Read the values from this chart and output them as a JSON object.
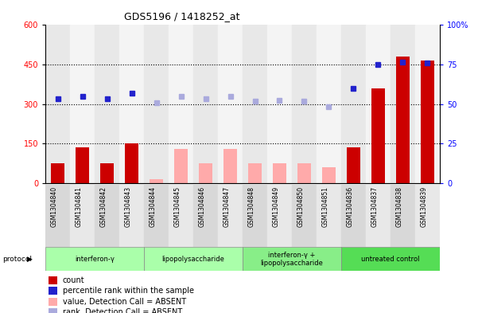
{
  "title": "GDS5196 / 1418252_at",
  "samples": [
    "GSM1304840",
    "GSM1304841",
    "GSM1304842",
    "GSM1304843",
    "GSM1304844",
    "GSM1304845",
    "GSM1304846",
    "GSM1304847",
    "GSM1304848",
    "GSM1304849",
    "GSM1304850",
    "GSM1304851",
    "GSM1304836",
    "GSM1304837",
    "GSM1304838",
    "GSM1304839"
  ],
  "count_values": [
    75,
    135,
    75,
    150,
    null,
    null,
    null,
    null,
    null,
    null,
    null,
    null,
    135,
    360,
    480,
    465
  ],
  "count_absent": [
    null,
    null,
    null,
    null,
    15,
    130,
    75,
    130,
    75,
    75,
    75,
    60,
    null,
    null,
    null,
    null
  ],
  "rank_values": [
    320,
    330,
    320,
    340,
    null,
    null,
    null,
    null,
    null,
    null,
    null,
    null,
    360,
    450,
    460,
    455
  ],
  "rank_absent": [
    null,
    null,
    null,
    null,
    305,
    330,
    320,
    330,
    310,
    315,
    310,
    290,
    null,
    null,
    null,
    null
  ],
  "protocols": [
    {
      "label": "interferon-γ",
      "start": 0,
      "end": 3,
      "color": "#aaffaa"
    },
    {
      "label": "lipopolysaccharide",
      "start": 4,
      "end": 7,
      "color": "#aaffaa"
    },
    {
      "label": "interferon-γ +\nlipopolysaccharide",
      "start": 8,
      "end": 11,
      "color": "#88ee88"
    },
    {
      "label": "untreated control",
      "start": 12,
      "end": 15,
      "color": "#55dd55"
    }
  ],
  "ylim_left": [
    0,
    600
  ],
  "ylim_right": [
    0,
    100
  ],
  "yticks_left": [
    0,
    150,
    300,
    450,
    600
  ],
  "yticks_right": [
    0,
    25,
    50,
    75,
    100
  ],
  "ytick_labels_right": [
    "0",
    "25",
    "50",
    "75",
    "100%"
  ],
  "bar_color_count": "#cc0000",
  "bar_color_absent": "#ffaaaa",
  "dot_color_rank": "#2222cc",
  "dot_color_rank_absent": "#aaaadd",
  "grid_color": "black",
  "grid_style": "dotted",
  "legend_items": [
    {
      "label": "count",
      "color": "#cc0000"
    },
    {
      "label": "percentile rank within the sample",
      "color": "#2222cc"
    },
    {
      "label": "value, Detection Call = ABSENT",
      "color": "#ffaaaa"
    },
    {
      "label": "rank, Detection Call = ABSENT",
      "color": "#aaaadd"
    }
  ]
}
